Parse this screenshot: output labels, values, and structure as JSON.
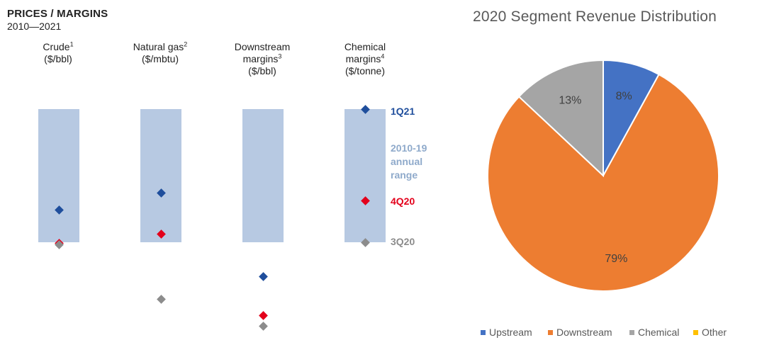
{
  "left_panel": {
    "title": "PRICES / MARGINS",
    "subtitle": "2010—2021",
    "legend": {
      "q_1q21": "1Q21",
      "range_lines": [
        "2010-19",
        "annual",
        "range"
      ],
      "q_4q20": "4Q20",
      "q_3q20": "3Q20"
    },
    "colors": {
      "range": "#b7c9e2",
      "1Q21": "#1f4e9c",
      "4Q20": "#e3001b",
      "3Q20": "#8c8c8c",
      "range_label": "#8faacb"
    }
  },
  "chart_data": [
    {
      "type": "scatter",
      "title": "PRICES / MARGINS 2010—2021",
      "units": "normalized position within 2010-19 annual range (0 = low, 1 = high)",
      "columns": [
        {
          "name": "Crude",
          "sup": "1",
          "unit": "($/bbl)",
          "markers": {
            "1Q21": 0.24,
            "4Q20": -0.01,
            "3Q20": -0.02
          }
        },
        {
          "name": "Natural gas",
          "sup": "2",
          "unit": "($/mbtu)",
          "markers": {
            "1Q21": 0.37,
            "4Q20": 0.06,
            "3Q20": -0.43
          }
        },
        {
          "name": "Downstream",
          "name2": "margins",
          "sup": "3",
          "unit": "($/bbl)",
          "markers": {
            "1Q21": -0.26,
            "4Q20": -0.55,
            "3Q20": -0.63
          }
        },
        {
          "name": "Chemical",
          "name2": "margins",
          "sup": "4",
          "unit": "($/tonne)",
          "markers": {
            "1Q21": 1.0,
            "4Q20": 0.31,
            "3Q20": 0.0
          }
        }
      ],
      "series": [
        "1Q21",
        "4Q20",
        "3Q20"
      ]
    },
    {
      "type": "pie",
      "title": "2020 Segment Revenue Distribution",
      "slices": [
        {
          "label": "Upstream",
          "value": 8,
          "text": "8%",
          "color": "#4472c4"
        },
        {
          "label": "Downstream",
          "value": 79,
          "text": "79%",
          "color": "#ed7d31"
        },
        {
          "label": "Chemical",
          "value": 13,
          "text": "13%",
          "color": "#a5a5a5"
        },
        {
          "label": "Other",
          "value": 0,
          "text": "",
          "color": "#ffc000"
        }
      ]
    }
  ]
}
